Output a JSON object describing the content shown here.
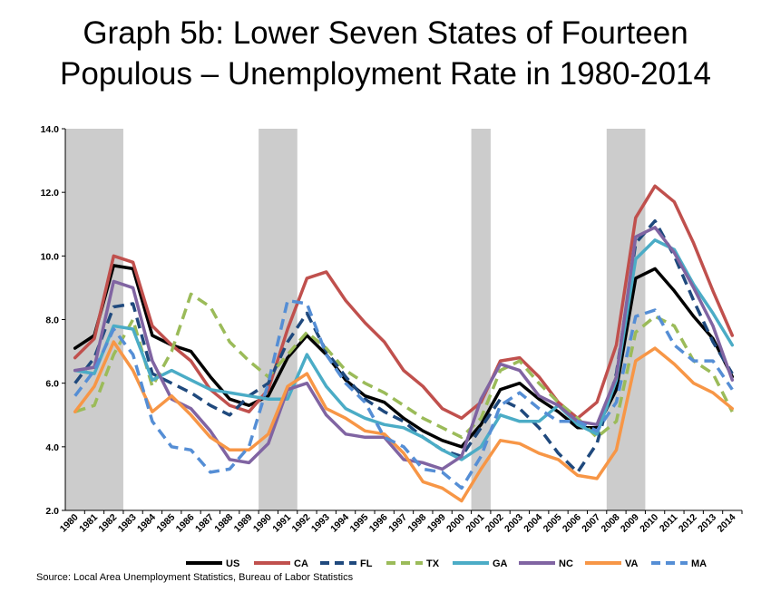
{
  "chart_data": {
    "type": "line",
    "title_line1": "Graph 5b:  Lower Seven States of Fourteen",
    "title_line2": "Populous – Unemployment Rate in 1980-2014",
    "x": [
      "1980",
      "1981",
      "1982",
      "1983",
      "1984",
      "1985",
      "1986",
      "1987",
      "1988",
      "1989",
      "1990",
      "1991",
      "1992",
      "1993",
      "1994",
      "1995",
      "1996",
      "1997",
      "1998",
      "1999",
      "2000",
      "2001",
      "2002",
      "2003",
      "2004",
      "2005",
      "2006",
      "2007",
      "2008",
      "2009",
      "2010",
      "2011",
      "2012",
      "2013",
      "2014"
    ],
    "ylim": [
      2.0,
      14.0
    ],
    "yticks": [
      "2.0",
      "4.0",
      "6.0",
      "8.0",
      "10.0",
      "12.0",
      "14.0"
    ],
    "recessions": [
      [
        1980,
        1982
      ],
      [
        1990,
        1991
      ],
      [
        2001,
        2001
      ],
      [
        2008,
        2009
      ]
    ],
    "recession_color": "#cccccc",
    "series": [
      {
        "name": "US",
        "color": "#000000",
        "dash": false,
        "values": [
          7.1,
          7.5,
          9.7,
          9.6,
          7.5,
          7.2,
          7.0,
          6.2,
          5.5,
          5.3,
          5.6,
          6.8,
          7.5,
          6.9,
          6.1,
          5.6,
          5.4,
          4.9,
          4.5,
          4.2,
          4.0,
          4.7,
          5.8,
          6.0,
          5.5,
          5.1,
          4.6,
          4.6,
          5.8,
          9.3,
          9.6,
          8.9,
          8.1,
          7.4,
          6.2
        ]
      },
      {
        "name": "CA",
        "color": "#c0504d",
        "dash": false,
        "values": [
          6.8,
          7.4,
          10.0,
          9.8,
          7.8,
          7.2,
          6.7,
          5.8,
          5.3,
          5.1,
          5.8,
          7.7,
          9.3,
          9.5,
          8.6,
          7.9,
          7.3,
          6.4,
          5.9,
          5.2,
          4.9,
          5.4,
          6.7,
          6.8,
          6.2,
          5.4,
          4.9,
          5.4,
          7.2,
          11.2,
          12.2,
          11.7,
          10.4,
          8.9,
          7.5
        ]
      },
      {
        "name": "FL",
        "color": "#1f497d",
        "dash": true,
        "values": [
          6.0,
          6.8,
          8.4,
          8.5,
          6.3,
          6.0,
          5.7,
          5.3,
          5.0,
          5.6,
          6.0,
          7.3,
          8.2,
          7.0,
          6.2,
          5.5,
          5.1,
          4.8,
          4.3,
          3.9,
          3.7,
          4.6,
          5.5,
          5.2,
          4.6,
          3.8,
          3.2,
          4.1,
          6.3,
          10.4,
          11.1,
          10.0,
          8.6,
          7.3,
          6.3
        ]
      },
      {
        "name": "TX",
        "color": "#9bbb59",
        "dash": true,
        "values": [
          5.1,
          5.3,
          6.9,
          8.0,
          5.9,
          7.0,
          8.8,
          8.4,
          7.3,
          6.7,
          6.2,
          6.9,
          7.6,
          7.1,
          6.4,
          6.0,
          5.7,
          5.3,
          4.9,
          4.6,
          4.3,
          4.9,
          6.4,
          6.7,
          6.0,
          5.4,
          4.9,
          4.3,
          4.8,
          7.6,
          8.1,
          7.8,
          6.7,
          6.3,
          5.1
        ]
      },
      {
        "name": "GA",
        "color": "#4bacc6",
        "dash": false,
        "values": [
          6.4,
          6.3,
          7.8,
          7.7,
          6.1,
          6.4,
          6.1,
          5.8,
          5.7,
          5.6,
          5.5,
          5.5,
          6.9,
          5.9,
          5.2,
          4.9,
          4.7,
          4.6,
          4.3,
          3.9,
          3.6,
          4.0,
          5.0,
          4.8,
          4.8,
          5.3,
          4.7,
          4.4,
          6.1,
          9.9,
          10.5,
          10.2,
          9.1,
          8.2,
          7.2
        ]
      },
      {
        "name": "NC",
        "color": "#8064a2",
        "dash": false,
        "values": [
          6.4,
          6.5,
          9.2,
          9.0,
          6.7,
          5.5,
          5.2,
          4.5,
          3.6,
          3.5,
          4.1,
          5.8,
          6.0,
          5.0,
          4.4,
          4.3,
          4.3,
          3.6,
          3.5,
          3.3,
          3.7,
          5.5,
          6.6,
          6.4,
          5.6,
          5.3,
          4.8,
          4.7,
          6.2,
          10.6,
          10.9,
          10.1,
          9.0,
          7.8,
          6.1
        ]
      },
      {
        "name": "VA",
        "color": "#f79646",
        "dash": false,
        "values": [
          5.1,
          5.9,
          7.3,
          6.4,
          5.1,
          5.6,
          5.0,
          4.3,
          3.9,
          3.9,
          4.4,
          5.9,
          6.3,
          5.2,
          4.9,
          4.5,
          4.4,
          3.8,
          2.9,
          2.7,
          2.3,
          3.3,
          4.2,
          4.1,
          3.8,
          3.6,
          3.1,
          3.0,
          3.9,
          6.7,
          7.1,
          6.6,
          6.0,
          5.7,
          5.2
        ]
      },
      {
        "name": "MA",
        "color": "#558ed5",
        "dash": true,
        "values": [
          5.6,
          6.4,
          7.7,
          6.9,
          4.8,
          4.0,
          3.9,
          3.2,
          3.3,
          4.0,
          6.0,
          8.6,
          8.5,
          6.9,
          6.0,
          5.4,
          4.3,
          4.0,
          3.3,
          3.2,
          2.7,
          3.7,
          5.3,
          5.7,
          5.2,
          4.8,
          4.8,
          4.5,
          5.4,
          8.1,
          8.3,
          7.2,
          6.7,
          6.7,
          5.8
        ]
      }
    ],
    "legend_position": "bottom",
    "grid": false
  },
  "source": "Source: Local Area Unemployment Statistics, Bureau of Labor Statistics"
}
